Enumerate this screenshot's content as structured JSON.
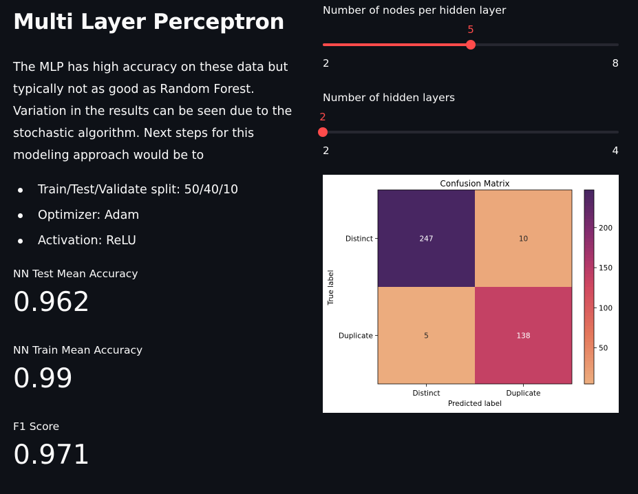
{
  "title": "Multi Layer Perceptron",
  "description": "The MLP has high accuracy on these data but typically not as good as Random Forest. Variation in the results can be seen due to the stochastic algorithm. Next steps for this modeling approach would be to",
  "bullets": [
    "Train/Test/Validate split: 50/40/10",
    "Optimizer: Adam",
    "Activation: ReLU"
  ],
  "metrics": [
    {
      "label": "NN Test Mean Accuracy",
      "value": "0.962"
    },
    {
      "label": "NN Train Mean Accuracy",
      "value": "0.99"
    },
    {
      "label": "F1 Score",
      "value": "0.971"
    }
  ],
  "sliders": [
    {
      "label": "Number of nodes per hidden layer",
      "value": "5",
      "min": "2",
      "max": "8",
      "fraction": 0.5,
      "accent": "#ff4b4b"
    },
    {
      "label": "Number of hidden layers",
      "value": "2",
      "min": "2",
      "max": "4",
      "fraction": 0.0,
      "accent": "#ff4b4b"
    }
  ],
  "chart_data": {
    "type": "heatmap",
    "title": "Confusion Matrix",
    "xlabel": "Predicted label",
    "ylabel": "True label",
    "x_categories": [
      "Distinct",
      "Duplicate"
    ],
    "y_categories": [
      "Distinct",
      "Duplicate"
    ],
    "values": [
      [
        247,
        10
      ],
      [
        5,
        138
      ]
    ],
    "colorbar_ticks": [
      50,
      100,
      150,
      200
    ],
    "colormap": "flare",
    "colorbar_range": [
      5,
      247
    ]
  }
}
